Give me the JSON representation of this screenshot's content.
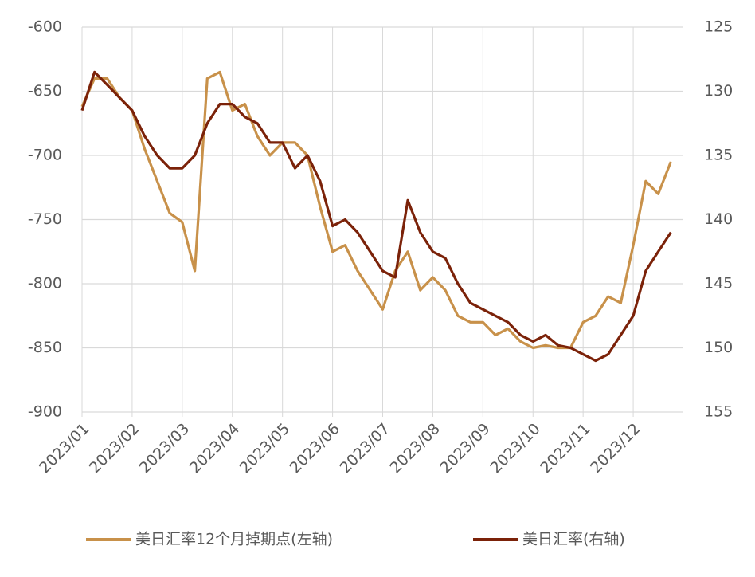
{
  "chart_data": {
    "type": "line",
    "categories": [
      "2023/01",
      null,
      null,
      null,
      "2023/02",
      null,
      null,
      null,
      "2023/03",
      null,
      null,
      null,
      "2023/04",
      null,
      null,
      null,
      "2023/05",
      null,
      null,
      null,
      "2023/06",
      null,
      null,
      null,
      "2023/07",
      null,
      null,
      null,
      "2023/08",
      null,
      null,
      null,
      "2023/09",
      null,
      null,
      null,
      "2023/10",
      null,
      null,
      null,
      "2023/11",
      null,
      null,
      null,
      "2023/12",
      null,
      null,
      null
    ],
    "series": [
      {
        "name": "美日汇率12个月掉期点(左轴)",
        "color": "#c8914a",
        "values": [
          -662,
          -640,
          -640,
          -655,
          -665,
          -695,
          -720,
          -745,
          -752,
          -790,
          -640,
          -635,
          -665,
          -660,
          -685,
          -700,
          -690,
          -690,
          -700,
          -740,
          -775,
          -770,
          -790,
          -805,
          -820,
          -790,
          -775,
          -805,
          -795,
          -805,
          -825,
          -830,
          -830,
          -840,
          -835,
          -845,
          -850,
          -848,
          -850,
          -850,
          -830,
          -825,
          -810,
          -815,
          -770,
          -720,
          -730,
          -705
        ]
      },
      {
        "name": "美日汇率(右轴)",
        "color": "#7b2209",
        "axis": "y2",
        "values": [
          131.5,
          128.5,
          129.5,
          130.5,
          131.5,
          133.5,
          135,
          136,
          136,
          135,
          132.5,
          131,
          131,
          132,
          132.5,
          134,
          134,
          136,
          135,
          137,
          140.5,
          140,
          141,
          142.5,
          144,
          144.5,
          138.5,
          141,
          142.5,
          143,
          145,
          146.5,
          147,
          147.5,
          148,
          149,
          149.5,
          149,
          149.8,
          150,
          150.5,
          151,
          150.5,
          149,
          147.5,
          144,
          142.5,
          141
        ]
      }
    ],
    "ylim": [
      -900,
      -600
    ],
    "yticks": [
      -900,
      -850,
      -800,
      -750,
      -700,
      -650,
      -600
    ],
    "y2lim": [
      155,
      125
    ],
    "y2ticks": [
      155,
      150,
      145,
      140,
      135,
      130,
      125
    ],
    "grid": true,
    "legend": "bottom"
  }
}
